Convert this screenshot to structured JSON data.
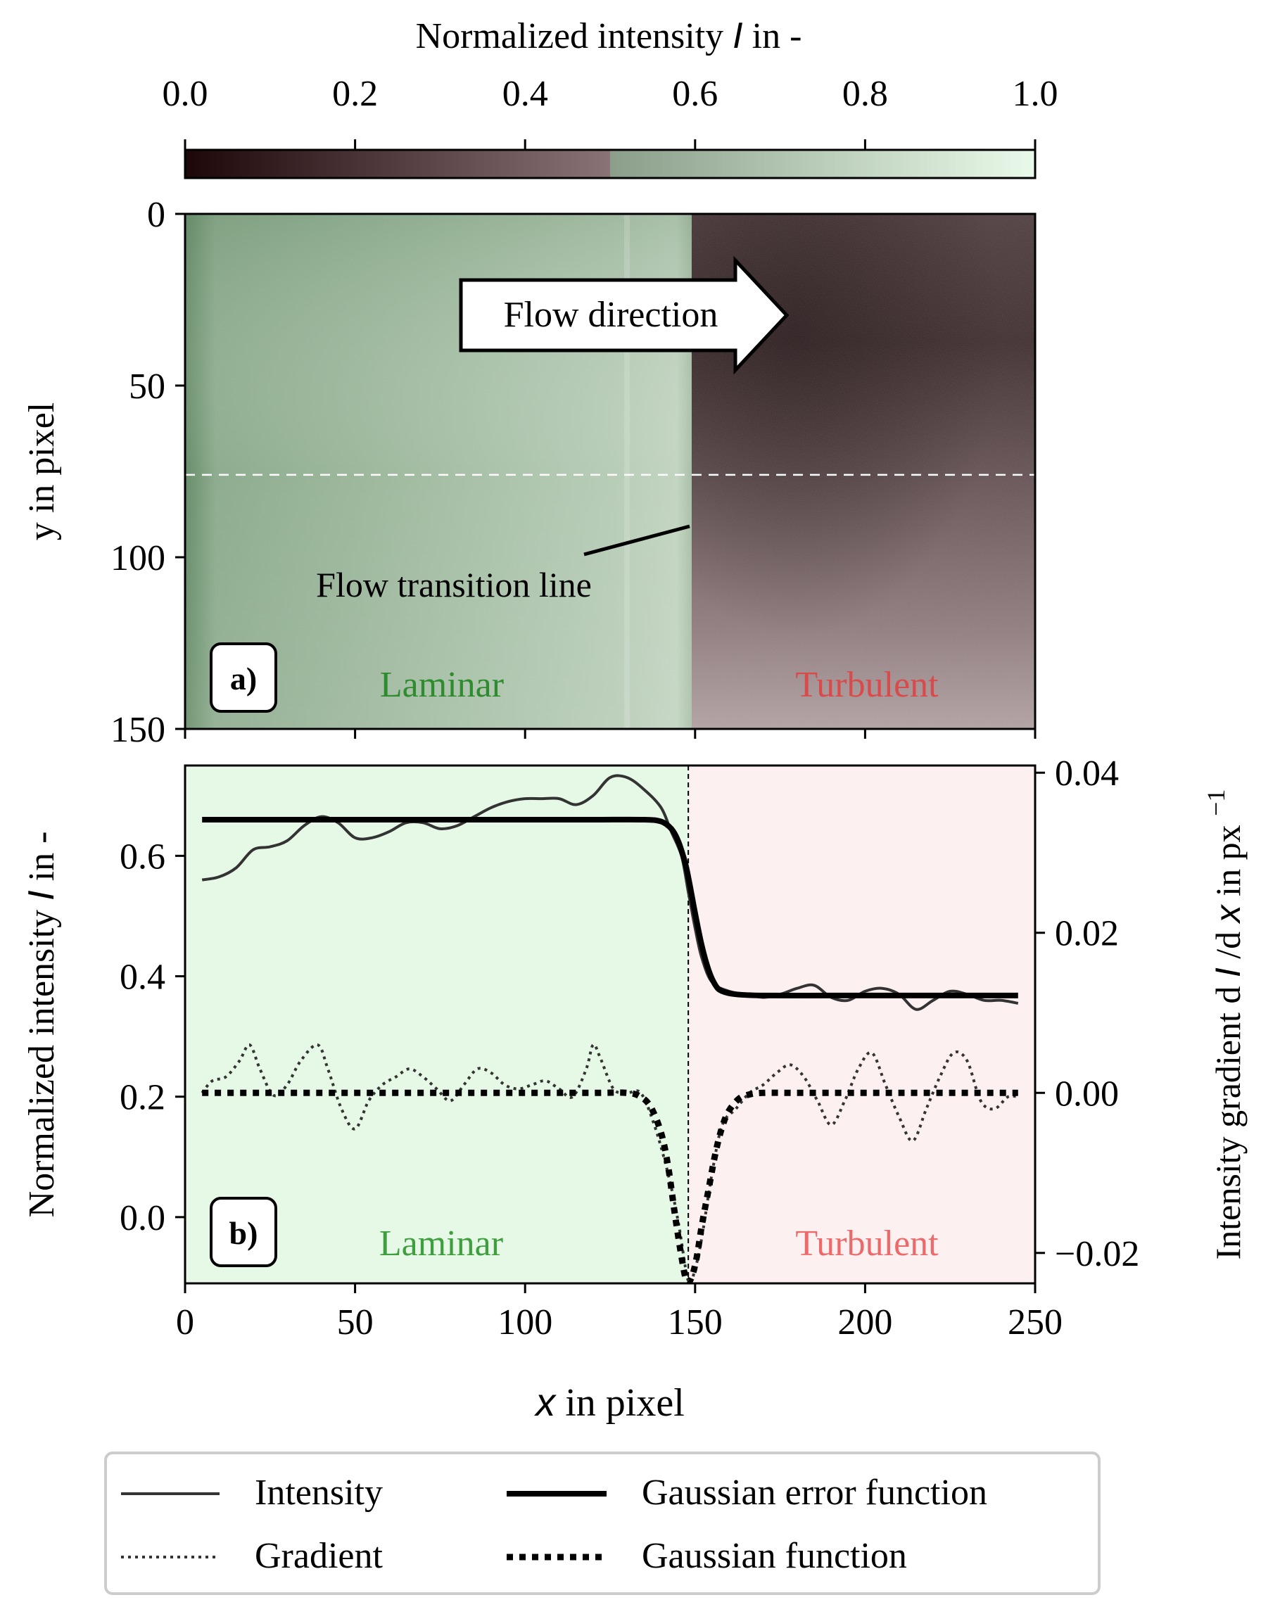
{
  "colorbar": {
    "label": "Normalized intensity",
    "label_symbol": "I",
    "label_suffix": " in -",
    "range": [
      0.0,
      1.0
    ],
    "ticks": [
      "0.0",
      "0.2",
      "0.4",
      "0.6",
      "0.8",
      "1.0"
    ],
    "colors": {
      "dark": "#1d0709",
      "mid_low": "#8a7377",
      "mid_high": "#8a9e8a",
      "light": "#eafaea"
    }
  },
  "panel_a": {
    "badge": "a)",
    "ylabel": "y in pixel",
    "yticks": [
      "0",
      "50",
      "100",
      "150"
    ],
    "yrange": [
      0,
      150
    ],
    "xrange": [
      0,
      250
    ],
    "transition_x": 149,
    "dashed_line_y": 76,
    "arrow_label": "Flow direction",
    "transition_label": "Flow transition line",
    "laminar_label": "Laminar",
    "turbulent_label": "Turbulent",
    "colors": {
      "laminar": "#2e8b2e",
      "turbulent": "#d94a4a"
    }
  },
  "chart_data": {
    "type": "line",
    "badge": "b)",
    "xlabel_symbol": "x",
    "xlabel_suffix": " in pixel",
    "ylabel_prefix": "Normalized intensity ",
    "ylabel_symbol": "I",
    "ylabel_suffix": " in -",
    "y2label": "Intensity gradient d",
    "y2label_mid": "/d",
    "y2label_end": " in px",
    "y2label_sup": "−1",
    "xlim": [
      0,
      250
    ],
    "ylim": [
      -0.11,
      0.75
    ],
    "y2lim": [
      -0.0238,
      0.0409
    ],
    "xticks": [
      "0",
      "50",
      "100",
      "150",
      "200",
      "250"
    ],
    "yticks": [
      "0.0",
      "0.2",
      "0.4",
      "0.6"
    ],
    "y2ticks": [
      "−0.02",
      "0.00",
      "0.02",
      "0.04"
    ],
    "transition_x": 148,
    "laminar_label": "Laminar",
    "turbulent_label": "Turbulent",
    "region_colors": {
      "laminar": "#e6f8e6",
      "turbulent": "#fdf0f0",
      "laminar_text": "#3f9f3f",
      "turbulent_text": "#ee6a6a"
    },
    "series": [
      {
        "name": "Intensity",
        "axis": "left",
        "x": [
          5,
          10,
          15,
          20,
          25,
          30,
          35,
          40,
          45,
          50,
          55,
          60,
          65,
          70,
          75,
          80,
          85,
          90,
          95,
          100,
          105,
          110,
          115,
          120,
          125,
          130,
          135,
          140,
          143,
          146,
          148,
          150,
          152,
          155,
          160,
          165,
          170,
          175,
          180,
          185,
          190,
          195,
          200,
          205,
          210,
          215,
          220,
          225,
          230,
          235,
          240,
          245
        ],
        "y": [
          0.56,
          0.565,
          0.58,
          0.61,
          0.615,
          0.625,
          0.65,
          0.665,
          0.655,
          0.63,
          0.63,
          0.64,
          0.655,
          0.655,
          0.645,
          0.65,
          0.665,
          0.68,
          0.69,
          0.695,
          0.695,
          0.695,
          0.685,
          0.7,
          0.73,
          0.73,
          0.71,
          0.68,
          0.64,
          0.6,
          0.54,
          0.48,
          0.43,
          0.39,
          0.375,
          0.37,
          0.365,
          0.37,
          0.38,
          0.385,
          0.365,
          0.36,
          0.375,
          0.38,
          0.37,
          0.345,
          0.36,
          0.375,
          0.37,
          0.36,
          0.36,
          0.355
        ]
      },
      {
        "name": "Gaussian error function",
        "axis": "left",
        "x": [
          5,
          20,
          40,
          60,
          80,
          100,
          120,
          135,
          140,
          143,
          145,
          147,
          148,
          149,
          150,
          152,
          154,
          156,
          158,
          162,
          170,
          190,
          210,
          230,
          245
        ],
        "y": [
          0.66,
          0.66,
          0.66,
          0.66,
          0.66,
          0.66,
          0.66,
          0.66,
          0.657,
          0.645,
          0.625,
          0.59,
          0.565,
          0.535,
          0.505,
          0.45,
          0.41,
          0.385,
          0.375,
          0.37,
          0.368,
          0.368,
          0.368,
          0.368,
          0.368
        ]
      },
      {
        "name": "Gradient",
        "axis": "right",
        "x": [
          5,
          8,
          12,
          16,
          19,
          22,
          26,
          30,
          34,
          39,
          42,
          46,
          50,
          54,
          58,
          62,
          66,
          70,
          74,
          78,
          82,
          86,
          90,
          94,
          98,
          102,
          106,
          110,
          114,
          118,
          120,
          122,
          126,
          130,
          134,
          138,
          142,
          145,
          148,
          150,
          152,
          155,
          158,
          162,
          166,
          170,
          174,
          178,
          182,
          186,
          190,
          194,
          198,
          202,
          206,
          210,
          214,
          218,
          222,
          226,
          230,
          234,
          238,
          242,
          245
        ],
        "y": [
          0.0,
          0.0015,
          0.002,
          0.004,
          0.006,
          0.003,
          -0.0003,
          0.001,
          0.004,
          0.006,
          0.003,
          -0.002,
          -0.0045,
          -0.001,
          0.001,
          0.002,
          0.003,
          0.002,
          0.0005,
          -0.001,
          0.001,
          0.003,
          0.0025,
          0.001,
          0.0005,
          0.001,
          0.0015,
          0.0005,
          -0.0005,
          0.003,
          0.006,
          0.0045,
          0.0005,
          0.0,
          0.0,
          -0.004,
          -0.01,
          -0.016,
          -0.0235,
          -0.022,
          -0.018,
          -0.01,
          -0.004,
          -0.002,
          0.0,
          0.001,
          0.0025,
          0.0035,
          0.002,
          -0.001,
          -0.004,
          -0.001,
          0.003,
          0.005,
          0.001,
          -0.003,
          -0.006,
          -0.002,
          0.002,
          0.005,
          0.004,
          -0.001,
          -0.002,
          -0.0005,
          -0.0005
        ]
      },
      {
        "name": "Gaussian function",
        "axis": "right",
        "x": [
          5,
          20,
          40,
          60,
          80,
          100,
          120,
          130,
          134,
          137,
          140,
          142,
          144,
          146,
          147.5,
          149,
          150.5,
          152,
          154,
          156,
          158,
          160,
          163,
          166,
          170,
          180,
          200,
          220,
          245
        ],
        "y": [
          0.0,
          0.0,
          0.0,
          0.0,
          0.0,
          0.0,
          0.0,
          0.0,
          -0.0005,
          -0.0018,
          -0.005,
          -0.009,
          -0.015,
          -0.0205,
          -0.0235,
          -0.023,
          -0.0205,
          -0.0165,
          -0.012,
          -0.0075,
          -0.0042,
          -0.0022,
          -0.0007,
          -0.0002,
          0.0,
          0.0,
          0.0,
          0.0,
          0.0
        ]
      }
    ],
    "legend": {
      "placement": "bottom",
      "items": [
        "Intensity",
        "Gaussian error function",
        "Gradient",
        "Gaussian function"
      ]
    }
  }
}
